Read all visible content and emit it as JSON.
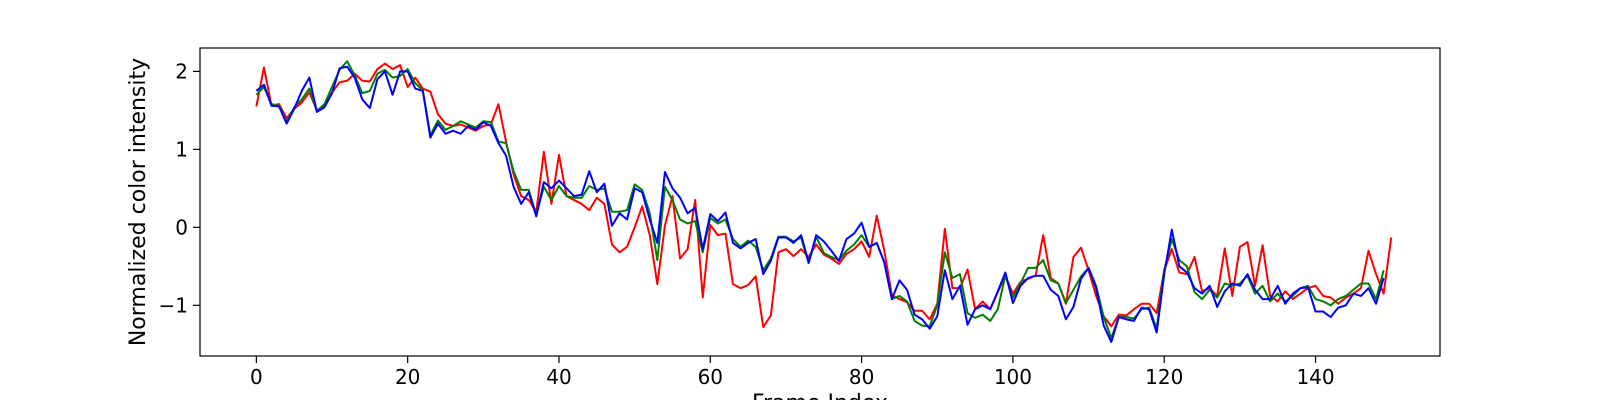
{
  "chart_data": {
    "type": "line",
    "title": "",
    "xlabel": "Frame Index",
    "ylabel": "Normalized color intensity",
    "xlim": [
      -7.45,
      156.45
    ],
    "ylim": [
      -1.65,
      2.3
    ],
    "xticks": [
      0,
      20,
      40,
      60,
      80,
      100,
      120,
      140
    ],
    "yticks": [
      -1,
      0,
      1,
      2
    ],
    "ytick_labels": [
      "−1",
      "0",
      "1",
      "2"
    ],
    "grid": false,
    "legend": "none",
    "series": [
      {
        "color": "#ff0000",
        "values": [
          1.55,
          2.05,
          1.56,
          1.58,
          1.4,
          1.52,
          1.6,
          1.73,
          1.5,
          1.56,
          1.73,
          1.86,
          1.88,
          1.97,
          1.88,
          1.87,
          2.03,
          2.1,
          2.03,
          2.08,
          1.8,
          1.92,
          1.78,
          1.74,
          1.45,
          1.33,
          1.3,
          1.32,
          1.28,
          1.24,
          1.3,
          1.32,
          1.58,
          1.1,
          0.68,
          0.4,
          0.35,
          0.2,
          0.97,
          0.3,
          0.93,
          0.4,
          0.35,
          0.3,
          0.22,
          0.38,
          0.3,
          -0.22,
          -0.32,
          -0.25,
          0.0,
          0.27,
          -0.1,
          -0.73,
          0.02,
          0.4,
          -0.4,
          -0.28,
          0.35,
          -0.9,
          0.03,
          -0.1,
          -0.08,
          -0.73,
          -0.78,
          -0.74,
          -0.63,
          -1.28,
          -1.13,
          -0.32,
          -0.28,
          -0.37,
          -0.28,
          -0.38,
          -0.22,
          -0.35,
          -0.4,
          -0.47,
          -0.34,
          -0.28,
          -0.18,
          -0.38,
          0.15,
          -0.3,
          -0.87,
          -0.92,
          -0.96,
          -1.07,
          -1.07,
          -1.18,
          -0.98,
          -0.02,
          -0.78,
          -0.78,
          -0.54,
          -1.05,
          -0.95,
          -1.05,
          -0.83,
          -0.62,
          -0.85,
          -0.7,
          -0.66,
          -0.62,
          -0.1,
          -0.65,
          -0.72,
          -0.98,
          -0.38,
          -0.26,
          -0.55,
          -0.88,
          -1.14,
          -1.27,
          -1.12,
          -1.13,
          -1.05,
          -0.98,
          -0.98,
          -1.1,
          -0.55,
          -0.28,
          -0.58,
          -0.6,
          -0.38,
          -0.82,
          -0.78,
          -0.88,
          -0.27,
          -0.88,
          -0.25,
          -0.19,
          -0.75,
          -0.23,
          -0.88,
          -0.95,
          -0.82,
          -0.92,
          -0.85,
          -0.78,
          -0.75,
          -0.88,
          -0.9,
          -0.98,
          -0.9,
          -0.85,
          -0.78,
          -0.3,
          -0.6,
          -0.85,
          -0.13
        ]
      },
      {
        "color": "#008000",
        "values": [
          1.7,
          1.8,
          1.58,
          1.56,
          1.35,
          1.54,
          1.64,
          1.78,
          1.49,
          1.58,
          1.8,
          2.02,
          2.13,
          1.95,
          1.72,
          1.75,
          1.97,
          2.02,
          1.92,
          1.94,
          2.03,
          1.85,
          1.76,
          1.18,
          1.37,
          1.25,
          1.3,
          1.36,
          1.32,
          1.28,
          1.36,
          1.35,
          1.1,
          1.08,
          0.72,
          0.48,
          0.48,
          0.16,
          0.52,
          0.35,
          0.53,
          0.4,
          0.38,
          0.38,
          0.53,
          0.48,
          0.5,
          0.2,
          0.2,
          0.22,
          0.55,
          0.48,
          0.18,
          -0.42,
          0.52,
          0.35,
          0.1,
          0.05,
          0.08,
          -0.32,
          0.12,
          0.05,
          0.1,
          -0.15,
          -0.25,
          -0.17,
          -0.25,
          -0.55,
          -0.4,
          -0.12,
          -0.12,
          -0.18,
          -0.13,
          -0.46,
          -0.12,
          -0.33,
          -0.38,
          -0.42,
          -0.3,
          -0.22,
          -0.1,
          -0.25,
          -0.2,
          -0.45,
          -0.92,
          -0.88,
          -0.95,
          -1.2,
          -1.26,
          -1.27,
          -1.0,
          -0.32,
          -0.65,
          -0.6,
          -1.1,
          -1.16,
          -1.12,
          -1.2,
          -1.05,
          -0.62,
          -0.9,
          -0.72,
          -0.52,
          -0.52,
          -0.42,
          -0.68,
          -0.72,
          -0.97,
          -0.8,
          -0.63,
          -0.52,
          -0.75,
          -1.15,
          -1.42,
          -1.15,
          -1.15,
          -1.17,
          -1.05,
          -1.03,
          -1.3,
          -0.55,
          -0.15,
          -0.42,
          -0.5,
          -0.83,
          -0.92,
          -0.8,
          -0.9,
          -0.72,
          -0.75,
          -0.72,
          -0.62,
          -0.85,
          -0.75,
          -0.95,
          -0.85,
          -0.95,
          -0.88,
          -0.78,
          -0.75,
          -0.92,
          -0.95,
          -1.0,
          -0.92,
          -0.88,
          -0.8,
          -0.72,
          -0.72,
          -0.92,
          -0.55
        ]
      },
      {
        "color": "#0000ff",
        "values": [
          1.75,
          1.83,
          1.56,
          1.55,
          1.33,
          1.52,
          1.75,
          1.92,
          1.48,
          1.54,
          1.72,
          2.04,
          2.06,
          1.92,
          1.64,
          1.53,
          1.9,
          2.0,
          1.7,
          2.0,
          2.0,
          1.78,
          1.75,
          1.15,
          1.33,
          1.2,
          1.24,
          1.2,
          1.3,
          1.25,
          1.35,
          1.3,
          1.08,
          0.92,
          0.52,
          0.3,
          0.45,
          0.14,
          0.58,
          0.5,
          0.6,
          0.5,
          0.4,
          0.42,
          0.72,
          0.45,
          0.56,
          0.02,
          0.18,
          0.1,
          0.5,
          0.45,
          0.1,
          -0.2,
          0.71,
          0.5,
          0.38,
          0.18,
          0.25,
          -0.28,
          0.17,
          0.08,
          0.19,
          -0.2,
          -0.27,
          -0.2,
          -0.15,
          -0.6,
          -0.43,
          -0.13,
          -0.13,
          -0.2,
          -0.1,
          -0.45,
          -0.1,
          -0.18,
          -0.3,
          -0.43,
          -0.15,
          -0.08,
          0.06,
          -0.25,
          -0.2,
          -0.45,
          -0.92,
          -0.68,
          -0.8,
          -1.12,
          -1.18,
          -1.3,
          -1.14,
          -0.55,
          -0.92,
          -0.75,
          -1.25,
          -1.05,
          -1.0,
          -1.05,
          -0.82,
          -0.58,
          -0.97,
          -0.75,
          -0.65,
          -0.62,
          -0.62,
          -0.8,
          -0.88,
          -1.18,
          -1.02,
          -0.66,
          -0.52,
          -0.78,
          -1.26,
          -1.47,
          -1.15,
          -1.18,
          -1.2,
          -1.03,
          -1.05,
          -1.35,
          -0.6,
          -0.03,
          -0.5,
          -0.58,
          -0.78,
          -0.85,
          -0.75,
          -1.02,
          -0.82,
          -0.72,
          -0.75,
          -0.6,
          -0.8,
          -0.92,
          -0.92,
          -0.75,
          -0.98,
          -0.85,
          -0.78,
          -0.77,
          -1.08,
          -1.08,
          -1.15,
          -1.03,
          -1.0,
          -0.85,
          -0.88,
          -0.78,
          -0.98,
          -0.65
        ]
      }
    ]
  }
}
